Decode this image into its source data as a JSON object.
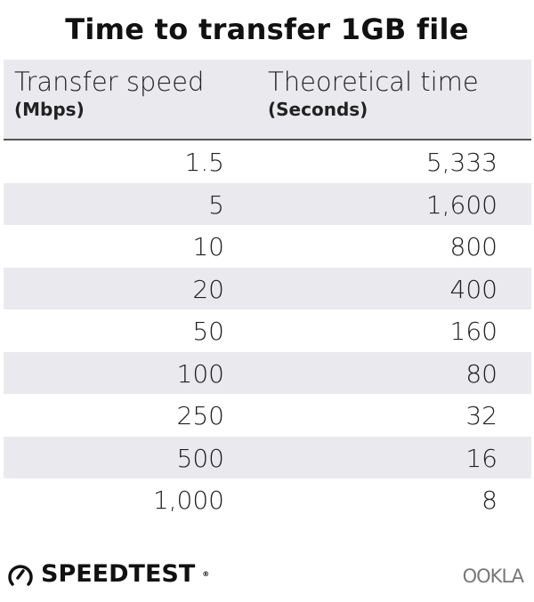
{
  "chart_data": {
    "type": "table",
    "title": "Time to transfer 1GB file",
    "columns": [
      {
        "label": "Transfer speed",
        "unit": "(Mbps)"
      },
      {
        "label": "Theoretical time",
        "unit": "(Seconds)"
      }
    ],
    "rows": [
      [
        "1.5",
        "5,333"
      ],
      [
        "5",
        "1,600"
      ],
      [
        "10",
        "800"
      ],
      [
        "20",
        "400"
      ],
      [
        "50",
        "160"
      ],
      [
        "100",
        "80"
      ],
      [
        "250",
        "32"
      ],
      [
        "500",
        "16"
      ],
      [
        "1,000",
        "8"
      ]
    ],
    "stripe_color": "#e9e9ee"
  },
  "footer": {
    "brand_left": "SPEEDTEST",
    "brand_right": "OOKLA"
  }
}
